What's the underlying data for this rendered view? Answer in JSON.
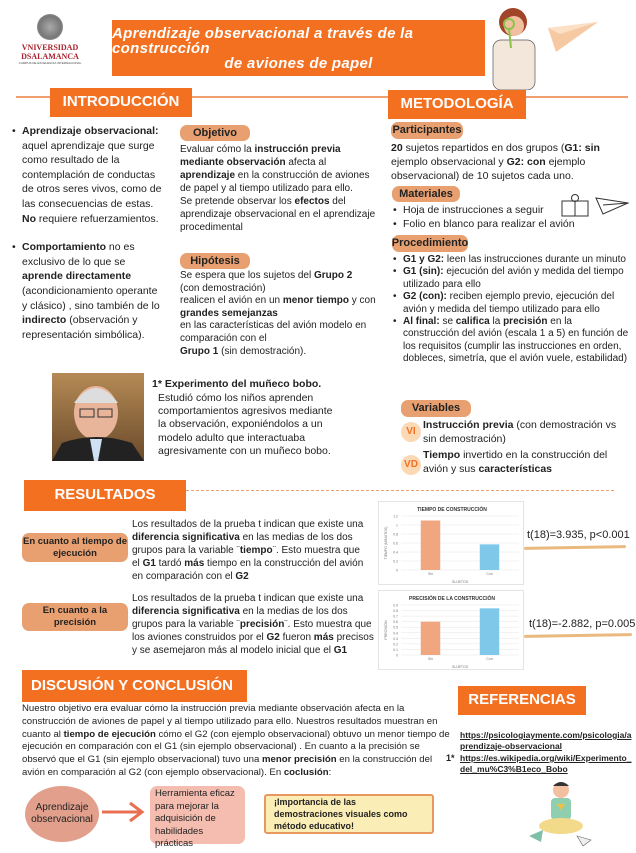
{
  "header": {
    "logo_text": [
      "VNIVERSIDAD",
      "DSALAMANCA",
      "CAMPUS DE EXCELENCIA INTERNACIONAL"
    ],
    "title_line1": "Aprendizaje observacional a través de la construcción",
    "title_line2": "de aviones de papel"
  },
  "colors": {
    "accent": "#f37021",
    "tag": "#e8a070",
    "bar_sin": "#f0a780",
    "bar_con": "#7fc8ea"
  },
  "intro": {
    "heading": "INTRODUCCIÓN",
    "bullets": [
      [
        {
          "t": "Aprendizaje observacional:",
          "b": true
        },
        {
          "t": " aquel aprendizaje que surge como resultado de la contemplación de conductas de otros seres vivos, como de las consecuencias de estas. "
        },
        {
          "t": "No",
          "b": true
        },
        {
          "t": " requiere refuerzamientos."
        }
      ],
      [
        {
          "t": "Comportamiento",
          "b": true
        },
        {
          "t": " no es exclusivo de lo que se "
        },
        {
          "t": "aprende directamente",
          "b": true
        },
        {
          "t": " (acondicionamiento operante y clásico) , sino también de lo "
        },
        {
          "t": "indirecto",
          "b": true
        },
        {
          "t": " (observación y representación simbólica)."
        }
      ]
    ],
    "objetivo_label": "Objetivo",
    "objetivo_text": [
      {
        "t": "Evaluar cómo la "
      },
      {
        "t": "instrucción previa mediante observación",
        "b": true
      },
      {
        "t": " afecta al "
      },
      {
        "t": "aprendizaje",
        "b": true
      },
      {
        "t": " en la construcción de aviones de papel y al tiempo utilizado para ello."
      },
      {
        "br": true
      },
      {
        "t": "Se pretende observar los "
      },
      {
        "t": "efectos",
        "b": true
      },
      {
        "t": " del aprendizaje observacional en el aprendizaje procedimental"
      }
    ],
    "hipotesis_label": "Hipótesis",
    "hipotesis_text": [
      {
        "t": "Se espera que los sujetos del "
      },
      {
        "t": "Grupo 2",
        "b": true
      },
      {
        "br": true
      },
      {
        "t": "(con demostración)"
      },
      {
        "br": true
      },
      {
        "t": "realicen el avión en un "
      },
      {
        "t": "menor tiempo",
        "b": true
      },
      {
        "t": " y con "
      },
      {
        "t": "grandes semejanzas",
        "b": true
      },
      {
        "br": true
      },
      {
        "t": "en las características del avión modelo en comparación con el"
      },
      {
        "br": true
      },
      {
        "t": "Grupo 1",
        "b": true
      },
      {
        "t": " (sin demostración)."
      }
    ],
    "bobo_title": "1* Experimento del muñeco bobo.",
    "bobo_text": "Estudió cómo los niños aprenden comportamientos agresivos mediante la observación, exponiéndolos a un modelo adulto que interactuaba agresivamente con un muñeco bobo."
  },
  "metodologia": {
    "heading": "METODOLOGÍA",
    "participantes_label": "Participantes",
    "participantes_text": [
      {
        "t": "20",
        "b": true
      },
      {
        "t": " sujetos repartidos en dos grupos ("
      },
      {
        "t": "G1: sin",
        "b": true
      },
      {
        "t": " ejemplo observacional y "
      },
      {
        "t": "G2: con",
        "b": true
      },
      {
        "t": " ejemplo observacional) de 10 sujetos cada uno."
      }
    ],
    "materiales_label": "Materiales",
    "materiales": [
      "Hoja de instrucciones a seguir",
      "Folio en blanco para realizar el avión"
    ],
    "procedimiento_label": "Procedimiento",
    "procedimiento": [
      [
        {
          "t": "G1 y G2:",
          "b": true
        },
        {
          "t": " leen las instrucciones durante un minuto"
        }
      ],
      [
        {
          "t": "G1 (sin):",
          "b": true
        },
        {
          "t": " ejecución del avión y medida del tiempo utilizado para ello"
        }
      ],
      [
        {
          "t": "G2 (con):",
          "b": true
        },
        {
          "t": " reciben ejemplo previo, ejecución del avión y medida del tiempo utilizado para ello"
        }
      ],
      [
        {
          "t": "Al final:",
          "b": true
        },
        {
          "t": " se "
        },
        {
          "t": "califica",
          "b": true
        },
        {
          "t": " la "
        },
        {
          "t": "precisión",
          "b": true
        },
        {
          "t": " en la construcción del avión (escala 1 a 5) en función de los requisitos (cumplir las instrucciones en orden, dobleces, simetría, que el avión vuele, estabilidad)"
        }
      ]
    ],
    "variables_label": "Variables",
    "vi_badge": "VI",
    "vi_text": [
      {
        "t": "Instrucción previa",
        "b": true
      },
      {
        "t": " (con demostración vs sin demostración)"
      }
    ],
    "vd_badge": "VD",
    "vd_text": [
      {
        "t": "Tiempo",
        "b": true
      },
      {
        "t": " invertido en la construcción del avión y sus "
      },
      {
        "t": "características",
        "b": true
      }
    ]
  },
  "resultados": {
    "heading": "RESULTADOS",
    "tiempo_label": "En cuanto al tiempo de ejecución",
    "tiempo_text": [
      {
        "t": "Los resultados de la prueba t indican que existe una "
      },
      {
        "t": "diferencia significativa",
        "b": true
      },
      {
        "t": " en las medias de los dos grupos para la variable ¨"
      },
      {
        "t": "tiempo",
        "b": true
      },
      {
        "t": "¨. Esto muestra que el "
      },
      {
        "t": "G1",
        "b": true
      },
      {
        "t": " tardó "
      },
      {
        "t": "más",
        "b": true
      },
      {
        "t": " tiempo en la construcción del avión en comparación con el "
      },
      {
        "t": "G2",
        "b": true
      }
    ],
    "precision_label": "En cuanto a la precisión",
    "precision_text": [
      {
        "t": "Los resultados de la prueba t indican que existe una "
      },
      {
        "t": "diferencia significativa",
        "b": true
      },
      {
        "t": " en la medias de los dos grupos para la variable ¨"
      },
      {
        "t": "precisión",
        "b": true
      },
      {
        "t": "¨. Esto muestra que los aviones construidos por el "
      },
      {
        "t": "G2",
        "b": true
      },
      {
        "t": " fueron "
      },
      {
        "t": "más",
        "b": true
      },
      {
        "t": " precisos y se asemejaron más al modelo inicial que el "
      },
      {
        "t": "G1",
        "b": true
      }
    ],
    "t_tiempo": "t(18)=3.935, p<0.001",
    "t_precision": "t(18)=-2.882, p=0.005"
  },
  "chart_data": [
    {
      "type": "bar",
      "title": "TIEMPO DE CONSTRUCCIÓN",
      "xlabel": "SUJETOS",
      "ylabel": "TIEMPO (MINUTOS)",
      "categories": [
        "Sin",
        "Con"
      ],
      "values": [
        1.1,
        0.57
      ],
      "ylim": [
        0,
        1.2
      ],
      "yticks": [
        "0",
        "0.2",
        "0.4",
        "0.6",
        "0.8",
        "1",
        "1.2"
      ],
      "grid": true
    },
    {
      "type": "bar",
      "title": "PRECISIÓN DE LA CONSTRUCCIÓN",
      "xlabel": "SUJETOS",
      "ylabel": "PRECISIÓN",
      "categories": [
        "Sin",
        "Con"
      ],
      "values": [
        0.6,
        0.84
      ],
      "ylim": [
        0,
        0.9
      ],
      "yticks": [
        "0",
        "0.1",
        "0.2",
        "0.3",
        "0.4",
        "0.5",
        "0.6",
        "0.7",
        "0.8",
        "0.9"
      ],
      "grid": true
    }
  ],
  "discusion": {
    "heading": "DISCUSIÓN Y CONCLUSIÓN",
    "text": [
      {
        "t": "Nuestro objetivo era evaluar cómo la instrucción previa mediante observación afecta en la construcción de aviones de papel y al tiempo utilizado para ello. Nuestros resultados muestran en cuanto al "
      },
      {
        "t": "tiempo de ejecución",
        "b": true
      },
      {
        "t": " cómo el G2 (con ejemplo observacional) obtuvo un menor tiempo de ejecución en comparación con el G1 (sin ejemplo observacional) . En cuanto a la precisión se observó que el G1 (sin ejemplo observacional) tuvo una "
      },
      {
        "t": "menor precisión",
        "b": true
      },
      {
        "t": " en la construcción del avión en comparación al G2 (con ejemplo observacional). En "
      },
      {
        "t": "coclusión",
        "b": true
      },
      {
        "t": ":"
      }
    ],
    "circle_text": "Aprendizaje observacional",
    "box_text": "Herramienta eficaz para mejorar la adquisición de habilidades prácticas",
    "scroll_text": "¡Importancia de las demostraciones visuales como método educativo!"
  },
  "referencias": {
    "heading": "REFERENCIAS",
    "link1": "https://psicologiaymente.com/psicologia/aprendizaje-observacional",
    "marker": "1*",
    "link2": "https://es.wikipedia.org/wiki/Experimento_del_mu%C3%B1eco_Bobo"
  }
}
